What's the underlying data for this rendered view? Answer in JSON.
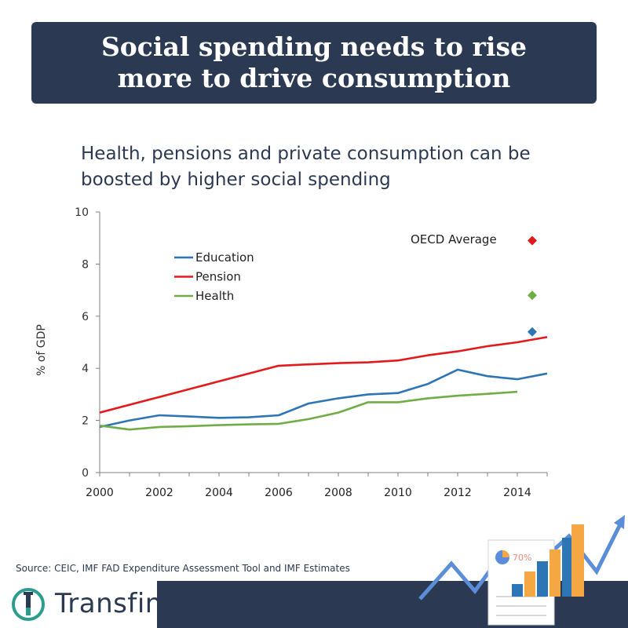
{
  "header": {
    "title_line1": "Social spending needs to rise",
    "title_line2": "more to drive consumption"
  },
  "subtitle": "Health, pensions and private consumption can be boosted by higher social spending",
  "source": "Source: CEIC, IMF FAD Expenditure Assessment Tool and IMF Estimates",
  "brand": {
    "name": "Transfin.",
    "accent": "#2a9d8f"
  },
  "decoration": {
    "percent_label": "70%"
  },
  "colors": {
    "navy": "#2b3a52",
    "education": "#2e75b6",
    "pension": "#e31a1c",
    "health": "#70ad47"
  },
  "chart_data": {
    "type": "line",
    "title": "",
    "xlabel": "",
    "ylabel": "% of GDP",
    "xlim": [
      2000,
      2015
    ],
    "ylim": [
      0,
      10
    ],
    "xticks": [
      2000,
      2002,
      2004,
      2006,
      2008,
      2010,
      2012,
      2014
    ],
    "yticks": [
      0,
      2,
      4,
      6,
      8,
      10
    ],
    "grid": false,
    "legend_position": "top-left",
    "series": [
      {
        "name": "Education",
        "color": "#2e75b6",
        "x": [
          2000,
          2001,
          2002,
          2003,
          2004,
          2005,
          2006,
          2007,
          2008,
          2009,
          2010,
          2011,
          2012,
          2013,
          2014,
          2015
        ],
        "values": [
          1.75,
          2.0,
          2.2,
          2.15,
          2.1,
          2.12,
          2.2,
          2.65,
          2.85,
          3.0,
          3.05,
          3.4,
          3.95,
          3.7,
          3.58,
          3.8
        ]
      },
      {
        "name": "Pension",
        "color": "#e31a1c",
        "x": [
          2000,
          2002,
          2004,
          2006,
          2007,
          2008,
          2009,
          2010,
          2011,
          2012,
          2013,
          2014,
          2015
        ],
        "values": [
          2.3,
          2.9,
          3.5,
          4.1,
          4.15,
          4.2,
          4.23,
          4.3,
          4.5,
          4.65,
          4.85,
          5.0,
          5.2
        ]
      },
      {
        "name": "Health",
        "color": "#70ad47",
        "x": [
          2000,
          2001,
          2002,
          2003,
          2004,
          2005,
          2006,
          2007,
          2008,
          2009,
          2010,
          2011,
          2012,
          2013,
          2014
        ],
        "values": [
          1.8,
          1.65,
          1.75,
          1.78,
          1.82,
          1.85,
          1.87,
          2.05,
          2.3,
          2.7,
          2.7,
          2.85,
          2.95,
          3.02,
          3.1
        ]
      }
    ],
    "oecd_average": {
      "label": "OECD Average",
      "x": 2014.5,
      "points": [
        {
          "series": "Pension",
          "value": 8.9,
          "color": "#e31a1c"
        },
        {
          "series": "Health",
          "value": 6.8,
          "color": "#70ad47"
        },
        {
          "series": "Education",
          "value": 5.4,
          "color": "#2e75b6"
        }
      ]
    }
  }
}
